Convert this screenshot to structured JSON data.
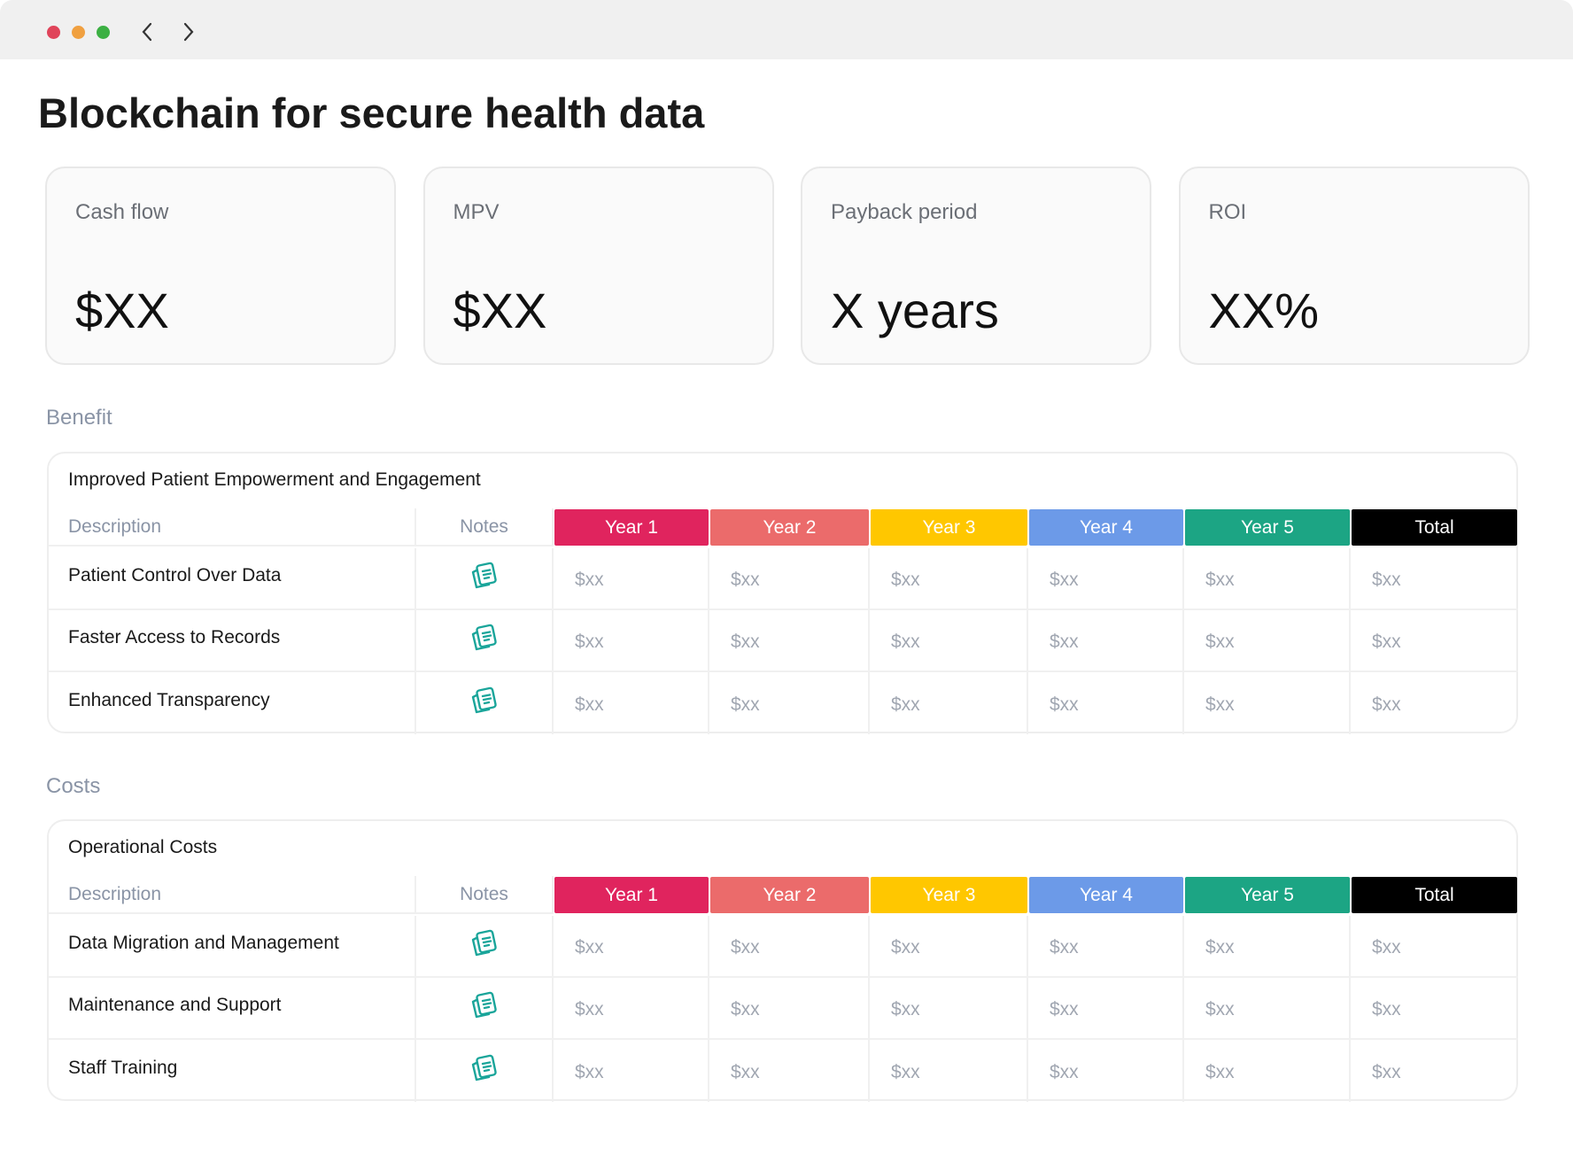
{
  "title": "Blockchain for secure health data",
  "cards": [
    {
      "label": "Cash flow",
      "value": "$XX"
    },
    {
      "label": "MPV",
      "value": "$XX"
    },
    {
      "label": "Payback period",
      "value": "X years"
    },
    {
      "label": "ROI",
      "value": "XX%"
    }
  ],
  "sections": [
    {
      "heading": "Benefit",
      "table": {
        "title": "Improved Patient Empowerment and Engagement",
        "columns": [
          "Description",
          "Notes",
          "Year 1",
          "Year 2",
          "Year 3",
          "Year 4",
          "Year 5",
          "Total"
        ],
        "rows": [
          [
            "Patient Control Over Data",
            "$xx",
            "$xx",
            "$xx",
            "$xx",
            "$xx",
            "$xx"
          ],
          [
            "Faster Access to Records",
            "$xx",
            "$xx",
            "$xx",
            "$xx",
            "$xx",
            "$xx"
          ],
          [
            "Enhanced Transparency",
            "$xx",
            "$xx",
            "$xx",
            "$xx",
            "$xx",
            "$xx"
          ]
        ]
      }
    },
    {
      "heading": "Costs",
      "table": {
        "title": "Operational Costs",
        "columns": [
          "Description",
          "Notes",
          "Year 1",
          "Year 2",
          "Year 3",
          "Year 4",
          "Year 5",
          "Total"
        ],
        "rows": [
          [
            "Data Migration and Management",
            "$xx",
            "$xx",
            "$xx",
            "$xx",
            "$xx",
            "$xx"
          ],
          [
            "Maintenance and Support",
            "$xx",
            "$xx",
            "$xx",
            "$xx",
            "$xx",
            "$xx"
          ],
          [
            "Staff Training",
            "$xx",
            "$xx",
            "$xx",
            "$xx",
            "$xx",
            "$xx"
          ]
        ]
      }
    }
  ]
}
